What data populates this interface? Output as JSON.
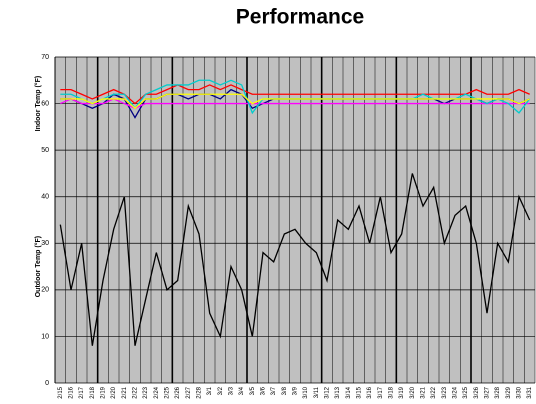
{
  "chart_data": {
    "type": "line",
    "title": "Performance",
    "y_labels": [
      "Indoor Temp (°F)",
      "Outdoor Temp (°F)"
    ],
    "categories": [
      "2/15",
      "2/16",
      "2/17",
      "2/18",
      "2/19",
      "2/20",
      "2/21",
      "2/22",
      "2/23",
      "2/24",
      "2/25",
      "2/26",
      "2/27",
      "2/28",
      "3/1",
      "3/2",
      "3/3",
      "3/4",
      "3/5",
      "3/6",
      "3/7",
      "3/8",
      "3/9",
      "3/10",
      "3/11",
      "3/12",
      "3/13",
      "3/14",
      "3/15",
      "3/16",
      "3/17",
      "3/18",
      "3/19",
      "3/20",
      "3/21",
      "3/22",
      "3/23",
      "3/24",
      "3/25",
      "3/26",
      "3/27",
      "3/28",
      "3/29",
      "3/30",
      "3/31"
    ],
    "series": [
      {
        "color": "#000000",
        "values": [
          34,
          20,
          30,
          8,
          22,
          33,
          40,
          8,
          18,
          28,
          20,
          22,
          38,
          32,
          15,
          10,
          25,
          20,
          10,
          28,
          26,
          32,
          33,
          30,
          28,
          22,
          35,
          33,
          38,
          30,
          40,
          28,
          32,
          45,
          38,
          42,
          30,
          36,
          38,
          30,
          15,
          30,
          26,
          40,
          35
        ]
      },
      {
        "color": "#ff0000",
        "values": [
          63,
          63,
          62,
          61,
          62,
          63,
          62,
          60,
          62,
          62,
          63,
          64,
          63,
          63,
          64,
          63,
          64,
          63,
          62,
          62,
          62,
          62,
          62,
          62,
          62,
          62,
          62,
          62,
          62,
          62,
          62,
          62,
          62,
          62,
          62,
          62,
          62,
          62,
          62,
          63,
          62,
          62,
          62,
          63,
          62
        ]
      },
      {
        "color": "#000080",
        "values": [
          61,
          61,
          60,
          59,
          60,
          62,
          61,
          57,
          61,
          61,
          62,
          62,
          61,
          62,
          62,
          61,
          63,
          62,
          59,
          60,
          61,
          61,
          61,
          61,
          61,
          61,
          61,
          61,
          61,
          61,
          61,
          61,
          61,
          61,
          61,
          61,
          60,
          61,
          61,
          61,
          60,
          61,
          61,
          60,
          61
        ]
      },
      {
        "color": "#ff00ff",
        "values": [
          60,
          61,
          60,
          60,
          60,
          61,
          60,
          59,
          60,
          60,
          60,
          60,
          60,
          60,
          60,
          60,
          60,
          60,
          60,
          60,
          60,
          60,
          60,
          60,
          60,
          60,
          60,
          60,
          60,
          60,
          60,
          60,
          60,
          60,
          60,
          60,
          60,
          60,
          60,
          60,
          60,
          60,
          60,
          60,
          60
        ]
      },
      {
        "color": "#00cccc",
        "values": [
          62,
          62,
          61,
          60,
          61,
          62,
          62,
          59,
          62,
          63,
          64,
          64,
          64,
          65,
          65,
          64,
          65,
          64,
          58,
          61,
          61,
          61,
          61,
          61,
          61,
          61,
          61,
          61,
          61,
          61,
          61,
          61,
          61,
          61,
          62,
          61,
          61,
          61,
          62,
          61,
          60,
          61,
          60,
          58,
          61
        ]
      },
      {
        "color": "#ffff00",
        "values": [
          61,
          61,
          61,
          60,
          61,
          61,
          61,
          59,
          61,
          61,
          62,
          62,
          62,
          62,
          62,
          62,
          62,
          62,
          60,
          61,
          61,
          61,
          61,
          61,
          61,
          61,
          61,
          61,
          61,
          61,
          61,
          61,
          61,
          61,
          61,
          61,
          61,
          61,
          61,
          61,
          61,
          61,
          61,
          60,
          61
        ]
      }
    ],
    "ylim": [
      0,
      70
    ],
    "yticks": [
      0,
      10,
      20,
      30,
      40,
      50,
      60,
      70
    ],
    "grid": true
  }
}
